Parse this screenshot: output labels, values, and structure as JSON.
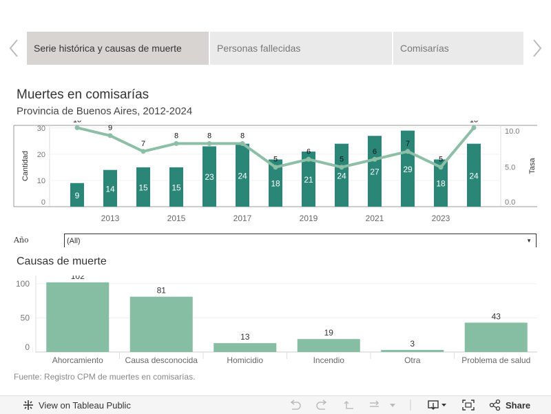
{
  "tabs": [
    {
      "label": "Serie histórica y causas de muerte",
      "active": true
    },
    {
      "label": "Personas fallecidas",
      "active": false
    },
    {
      "label": "Comisarías",
      "active": false
    }
  ],
  "main_chart": {
    "title": "Muertes en comisarías",
    "subtitle": "Provincia de Buenos Aires,  2012-2024",
    "left_axis_label": "Cantidad",
    "right_axis_label": "Tasa"
  },
  "filter": {
    "label": "Año",
    "value": "(All)"
  },
  "causes_chart": {
    "title": "Causas de muerte"
  },
  "source": "Fuente: Registro CPM de muertes en comisarías.",
  "footer": {
    "view_label": "View on Tableau Public",
    "share_label": "Share"
  },
  "colors": {
    "bar": "#2a8778",
    "line": "#8cbfa6",
    "cause_bar": "#85bea3",
    "tab_active": "#d8d4d2",
    "tab_inactive": "#ebeaea"
  },
  "chart_data": [
    {
      "type": "bar+line",
      "title": "Muertes en comisarías",
      "subtitle": "Provincia de Buenos Aires,  2012-2024",
      "x": [
        2012,
        2013,
        2014,
        2015,
        2016,
        2017,
        2018,
        2019,
        2020,
        2021,
        2022,
        2023,
        2024
      ],
      "x_tick_labels": [
        "2013",
        "2015",
        "2017",
        "2019",
        "2021",
        "2023"
      ],
      "series": [
        {
          "name": "Cantidad",
          "axis": "left",
          "kind": "bar",
          "values": [
            9,
            14,
            15,
            15,
            23,
            24,
            18,
            21,
            24,
            27,
            29,
            18,
            24
          ]
        },
        {
          "name": "Tasa",
          "axis": "right",
          "kind": "line",
          "values": [
            10,
            9,
            7,
            8,
            8,
            8,
            5,
            6,
            5,
            6,
            7,
            5,
            10
          ]
        }
      ],
      "ylabel": "Cantidad",
      "y2label": "Tasa",
      "ylim": [
        0,
        31
      ],
      "y_ticks": [
        "0",
        "10",
        "20",
        "30"
      ],
      "y2lim": [
        0,
        10.3
      ],
      "y2_ticks": [
        "0.0",
        "5.0",
        "10.0"
      ],
      "grid": true
    },
    {
      "type": "bar",
      "title": "Causas de muerte",
      "categories": [
        "Ahorcamiento",
        "Causa desconocida",
        "Homicidio",
        "Incendio",
        "Otra",
        "Problema de salud"
      ],
      "values": [
        102,
        81,
        13,
        19,
        3,
        43
      ],
      "ylim": [
        0,
        112
      ],
      "y_ticks": [
        "0",
        "50",
        "100"
      ],
      "grid": true
    }
  ]
}
